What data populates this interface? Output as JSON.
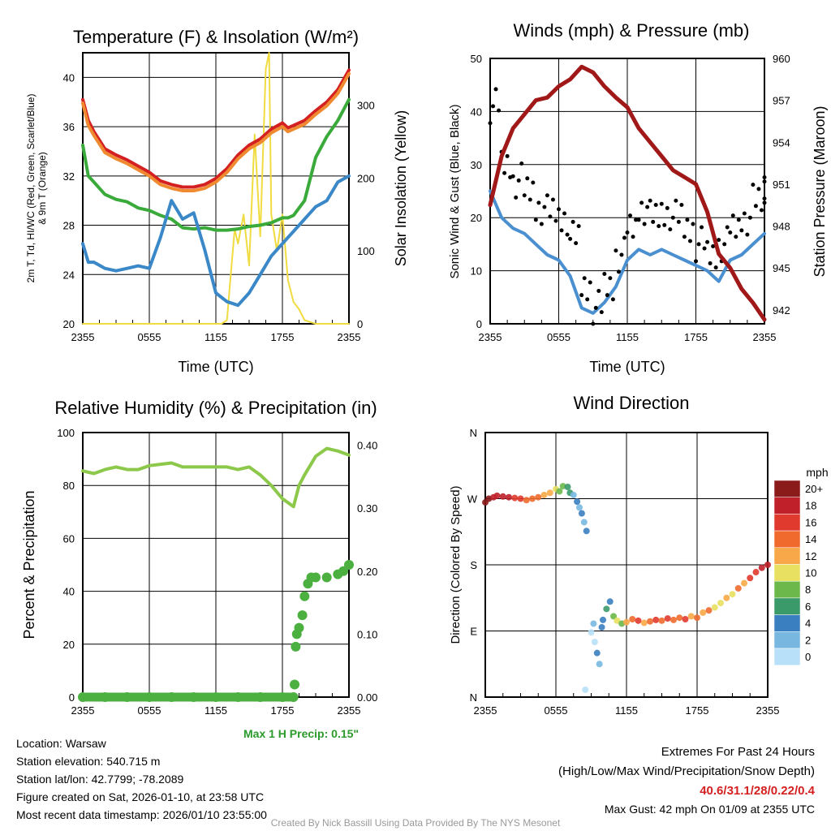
{
  "x_ticks": [
    "2355",
    "0555",
    "1155",
    "1755",
    "2355"
  ],
  "chart_data": [
    {
      "type": "line",
      "title": "Temperature (F) & Insolation (W/m²)",
      "xlabel": "Time (UTC)",
      "ylabel": "2m T, Td, HI/WC (Red, Green, Scarlet/Blue)",
      "ylabel2": "& 9m T (Orange)",
      "ylabel_right": "Solar Insolation (Yellow)",
      "ylim": [
        20,
        42
      ],
      "ylim_right": [
        0,
        372
      ],
      "yticks": [
        "20",
        "24",
        "28",
        "32",
        "36",
        "40"
      ],
      "yticks_right": [
        "0",
        "100",
        "200",
        "300"
      ],
      "hours": [
        0,
        0.5,
        1,
        2,
        3,
        4,
        5,
        6,
        7,
        8,
        9,
        10,
        11,
        12,
        13,
        14,
        15,
        16,
        17,
        18,
        18.5,
        19,
        20,
        21,
        22,
        23,
        24
      ],
      "series": [
        {
          "name": "2m T",
          "color": "#d42020",
          "values": [
            38.2,
            36.5,
            35.6,
            34.2,
            33.7,
            33.3,
            32.8,
            32.3,
            31.6,
            31.3,
            31.1,
            31.1,
            31.3,
            31.8,
            32.6,
            33.7,
            34.5,
            35.0,
            35.8,
            36.3,
            35.9,
            36.1,
            36.5,
            37.3,
            38.0,
            39.0,
            40.6
          ]
        },
        {
          "name": "9m T",
          "color": "#f08a30",
          "values": [
            37.9,
            36.1,
            35.3,
            33.9,
            33.4,
            33.0,
            32.5,
            32.0,
            31.3,
            31.0,
            30.8,
            30.8,
            31.0,
            31.5,
            32.3,
            33.4,
            34.2,
            34.7,
            35.5,
            36.0,
            35.6,
            35.8,
            36.2,
            37.0,
            37.7,
            38.7,
            40.3
          ]
        },
        {
          "name": "HI/WC",
          "color": "#3aaa3a",
          "values": [
            34.5,
            32.0,
            31.5,
            30.5,
            30.1,
            29.9,
            29.4,
            29.2,
            28.8,
            28.5,
            27.8,
            27.7,
            27.8,
            27.6,
            27.6,
            27.7,
            27.9,
            28.0,
            28.2,
            28.6,
            28.6,
            28.8,
            30.0,
            33.5,
            35.2,
            36.5,
            38.2
          ]
        },
        {
          "name": "Td",
          "color": "#3a88c8",
          "values": [
            26.5,
            25.0,
            25.0,
            24.5,
            24.3,
            24.5,
            24.7,
            24.5,
            27.0,
            30.0,
            28.5,
            29.0,
            26.0,
            22.5,
            21.8,
            21.5,
            22.5,
            24.0,
            25.5,
            26.5,
            27.0,
            27.5,
            28.5,
            29.5,
            30.0,
            31.5,
            32.0
          ]
        }
      ],
      "solar": {
        "name": "Solar",
        "color": "#f0dc40",
        "hours": [
          0,
          12.5,
          13,
          13.3,
          13.7,
          14,
          14.5,
          15,
          15.5,
          16,
          16.5,
          16.8,
          17,
          17.5,
          18,
          18.5,
          19,
          19.5,
          20,
          21,
          24
        ],
        "values": [
          0,
          0,
          5,
          60,
          130,
          110,
          150,
          80,
          260,
          120,
          350,
          372,
          150,
          100,
          150,
          60,
          30,
          20,
          5,
          0,
          0
        ]
      }
    },
    {
      "type": "line",
      "title": "Winds (mph) & Pressure (mb)",
      "xlabel": "Time (UTC)",
      "ylabel": "Sonic Wind & Gust (Blue, Black)",
      "ylabel_right": "Station Pressure (Maroon)",
      "ylim": [
        0,
        50
      ],
      "ylim_right": [
        941,
        960
      ],
      "yticks": [
        "0",
        "10",
        "20",
        "30",
        "40",
        "50"
      ],
      "yticks_right": [
        "942",
        "945",
        "948",
        "951",
        "954",
        "957",
        "960"
      ],
      "hours": [
        0,
        1,
        2,
        3,
        4,
        5,
        6,
        7,
        8,
        9,
        10,
        11,
        12,
        13,
        14,
        15,
        16,
        17,
        18,
        19,
        20,
        21,
        22,
        23,
        24
      ],
      "wind": {
        "color": "#4a90d0",
        "values": [
          25,
          20,
          18,
          17,
          15,
          13,
          12,
          9,
          3,
          2,
          4,
          7,
          12,
          14,
          13,
          14,
          13,
          12,
          11,
          10,
          8,
          12,
          13,
          15,
          17
        ]
      },
      "gust": {
        "color": "#000000",
        "values": [
          41,
          30,
          27,
          25,
          22,
          21,
          20,
          16,
          7,
          3,
          7,
          13,
          18,
          22,
          20,
          21,
          20,
          18,
          15,
          13,
          15,
          18,
          20,
          23,
          26
        ]
      },
      "pressure": {
        "color": "#a01818",
        "values": [
          949.5,
          953,
          955,
          956,
          957,
          957.2,
          958,
          958.5,
          959.4,
          959,
          958,
          957.2,
          956.5,
          955,
          954,
          953,
          952,
          951.5,
          951,
          949,
          946,
          945,
          943.5,
          942.5,
          941.3
        ]
      }
    },
    {
      "type": "line",
      "title": "Relative Humidity (%) & Precipitation (in)",
      "ylabel": "Percent & Precipitation",
      "ylim": [
        0,
        100
      ],
      "ylim_right": [
        0,
        0.42
      ],
      "yticks": [
        "0",
        "20",
        "40",
        "60",
        "80",
        "100"
      ],
      "yticks_right": [
        "0.00",
        "0.10",
        "0.20",
        "0.30",
        "0.40"
      ],
      "rh": {
        "color": "#8cc84a",
        "hours": [
          0,
          1,
          2,
          3,
          4,
          5,
          6,
          7,
          8,
          9,
          10,
          11,
          12,
          13,
          14,
          15,
          16,
          17,
          18,
          19,
          19.5,
          20,
          21,
          22,
          23,
          24
        ],
        "values": [
          85.5,
          84.5,
          86,
          87,
          86,
          86,
          87.5,
          88,
          88.5,
          87,
          87,
          87,
          87,
          87,
          86,
          87,
          84,
          80,
          75,
          72,
          80,
          84,
          91,
          94,
          93,
          91.5
        ]
      },
      "precip": {
        "color": "#4cb040",
        "hours": [
          0,
          2,
          4,
          6,
          8,
          10,
          12,
          14,
          16,
          18,
          19,
          19.1,
          19.2,
          19.3,
          19.5,
          19.8,
          20,
          20.3,
          20.6,
          21,
          22,
          23,
          23.5,
          24
        ],
        "values": [
          0,
          0,
          0,
          0,
          0,
          0,
          0,
          0,
          0,
          0,
          0,
          0.02,
          0.08,
          0.1,
          0.11,
          0.13,
          0.16,
          0.18,
          0.19,
          0.19,
          0.19,
          0.195,
          0.2,
          0.21
        ]
      },
      "note": "Max 1 H Precip: 0.15\""
    },
    {
      "type": "scatter",
      "title": "Wind Direction",
      "ylabel": "Direction (Colored By Speed)",
      "ylim": [
        0,
        360
      ],
      "yticks": [
        "N",
        "E",
        "S",
        "W",
        "N"
      ],
      "colorbar": {
        "title": "mph",
        "labels": [
          "20+",
          "18",
          "16",
          "14",
          "12",
          "10",
          "8",
          "6",
          "4",
          "2",
          "0"
        ],
        "colors": [
          "#8b1a1a",
          "#c0202a",
          "#e03a2e",
          "#f06a2e",
          "#f8a848",
          "#e8e060",
          "#6cb84a",
          "#3a9a6a",
          "#3a80c0",
          "#78b8e0",
          "#b8e0f8"
        ]
      },
      "points": [
        [
          0,
          265,
          20
        ],
        [
          0.3,
          270,
          20
        ],
        [
          0.7,
          272,
          19
        ],
        [
          1,
          274,
          19
        ],
        [
          1.5,
          273,
          18
        ],
        [
          2,
          272,
          18
        ],
        [
          2.5,
          271,
          17
        ],
        [
          3,
          270,
          16
        ],
        [
          3.5,
          268,
          15
        ],
        [
          4,
          270,
          14
        ],
        [
          4.5,
          272,
          14
        ],
        [
          5,
          275,
          13
        ],
        [
          5.5,
          278,
          12
        ],
        [
          6,
          283,
          11
        ],
        [
          6.3,
          280,
          9
        ],
        [
          6.6,
          287,
          8
        ],
        [
          7,
          286,
          7
        ],
        [
          7.2,
          278,
          6
        ],
        [
          7.5,
          275,
          3
        ],
        [
          7.8,
          266,
          4
        ],
        [
          8,
          258,
          3
        ],
        [
          8.2,
          250,
          4
        ],
        [
          8.4,
          238,
          3
        ],
        [
          8.6,
          226,
          4
        ],
        [
          8.5,
          10,
          1
        ],
        [
          9,
          88,
          1
        ],
        [
          9.2,
          100,
          2
        ],
        [
          9.3,
          75,
          1
        ],
        [
          9.5,
          60,
          4
        ],
        [
          9.7,
          45,
          3
        ],
        [
          9.9,
          95,
          4
        ],
        [
          10,
          105,
          5
        ],
        [
          10.3,
          120,
          7
        ],
        [
          10.6,
          130,
          4
        ],
        [
          10.9,
          110,
          8
        ],
        [
          11.2,
          104,
          10
        ],
        [
          11.6,
          100,
          9
        ],
        [
          12,
          102,
          13
        ],
        [
          12.5,
          106,
          15
        ],
        [
          13,
          104,
          16
        ],
        [
          13.5,
          101,
          13
        ],
        [
          14,
          103,
          15
        ],
        [
          14.5,
          105,
          16
        ],
        [
          15,
          104,
          14
        ],
        [
          15.5,
          107,
          16
        ],
        [
          16,
          105,
          15
        ],
        [
          16.5,
          108,
          14
        ],
        [
          17,
          106,
          16
        ],
        [
          17.5,
          110,
          13
        ],
        [
          18,
          108,
          14
        ],
        [
          18.5,
          115,
          12
        ],
        [
          19,
          118,
          14
        ],
        [
          19.5,
          122,
          11
        ],
        [
          20,
          128,
          10
        ],
        [
          20.5,
          135,
          12
        ],
        [
          21,
          140,
          10
        ],
        [
          21.5,
          148,
          14
        ],
        [
          22,
          155,
          13
        ],
        [
          22.5,
          162,
          16
        ],
        [
          23,
          170,
          17
        ],
        [
          23.5,
          176,
          18
        ],
        [
          24,
          180,
          19
        ]
      ]
    }
  ],
  "footer": {
    "location": "Location: Warsaw",
    "elevation": "Station elevation: 540.715 m",
    "latlon": "Station lat/lon: 42.7799; -78.2089",
    "created": "Figure created on Sat, 2026-01-10, at 23:58 UTC",
    "recent": "Most recent data timestamp: 2026/01/10 23:55:00",
    "extremes_title": "Extremes For Past 24 Hours",
    "extremes_sub": "(High/Low/Max Wind/Precipitation/Snow Depth)",
    "extremes_values": "40.6/31.1/28/0.22/0.4",
    "max_gust": "Max Gust: 42 mph On 01/09 at 2355 UTC",
    "credit": "Created By Nick Bassill Using Data Provided By The NYS Mesonet"
  }
}
